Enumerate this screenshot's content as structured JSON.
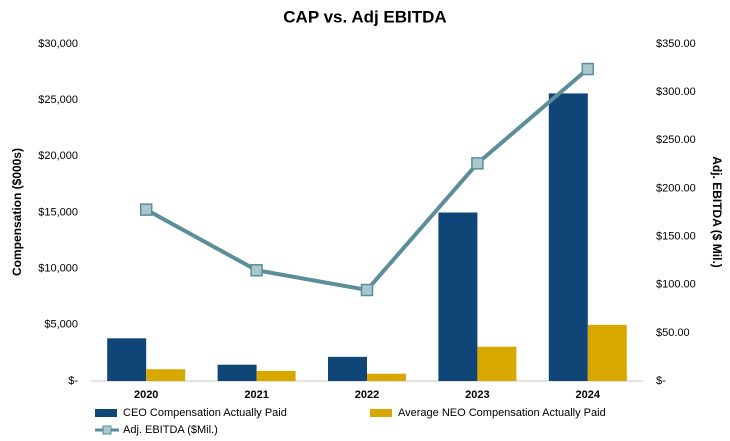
{
  "chart_data": {
    "type": "bar",
    "title": "CAP vs. Adj EBITDA",
    "y_label": "Compensation ($000s)",
    "y2_label": "Adj. EBITDA ($ Mil.)",
    "categories": [
      "2020",
      "2021",
      "2022",
      "2023",
      "2024"
    ],
    "series": [
      {
        "name": "CEO Compensation Actually Paid",
        "color": "#0f4577",
        "type": "bar",
        "values": [
          3800,
          1450,
          2150,
          15000,
          25600
        ]
      },
      {
        "name": "Average NEO Compensation Actually Paid",
        "color": "#d9a800",
        "type": "bar",
        "values": [
          1050,
          900,
          650,
          3050,
          5000
        ]
      },
      {
        "name": "Adj. EBITDA ($Mil.)",
        "color": "#5b8e99",
        "type": "line",
        "axis": "y2",
        "values": [
          178,
          115,
          94.5,
          226,
          324
        ]
      }
    ],
    "ylim": [
      0,
      30000
    ],
    "yticks": [
      {
        "value": 0,
        "label": "$-"
      },
      {
        "value": 5000,
        "label": "$5,000"
      },
      {
        "value": 10000,
        "label": "$10,000"
      },
      {
        "value": 15000,
        "label": "$15,000"
      },
      {
        "value": 20000,
        "label": "$20,000"
      },
      {
        "value": 25000,
        "label": "$25,000"
      },
      {
        "value": 30000,
        "label": "$30,000"
      }
    ],
    "y2lim": [
      0,
      350
    ],
    "y2ticks": [
      {
        "value": 0,
        "label": "$-"
      },
      {
        "value": 50,
        "label": "$50.00"
      },
      {
        "value": 100,
        "label": "$100.00"
      },
      {
        "value": 150,
        "label": "$150.00"
      },
      {
        "value": 200,
        "label": "$200.00"
      },
      {
        "value": 250,
        "label": "$250.00"
      },
      {
        "value": 300,
        "label": "$300.00"
      },
      {
        "value": 350,
        "label": "$350.00"
      }
    ],
    "grid": false,
    "legend": "bottom"
  }
}
